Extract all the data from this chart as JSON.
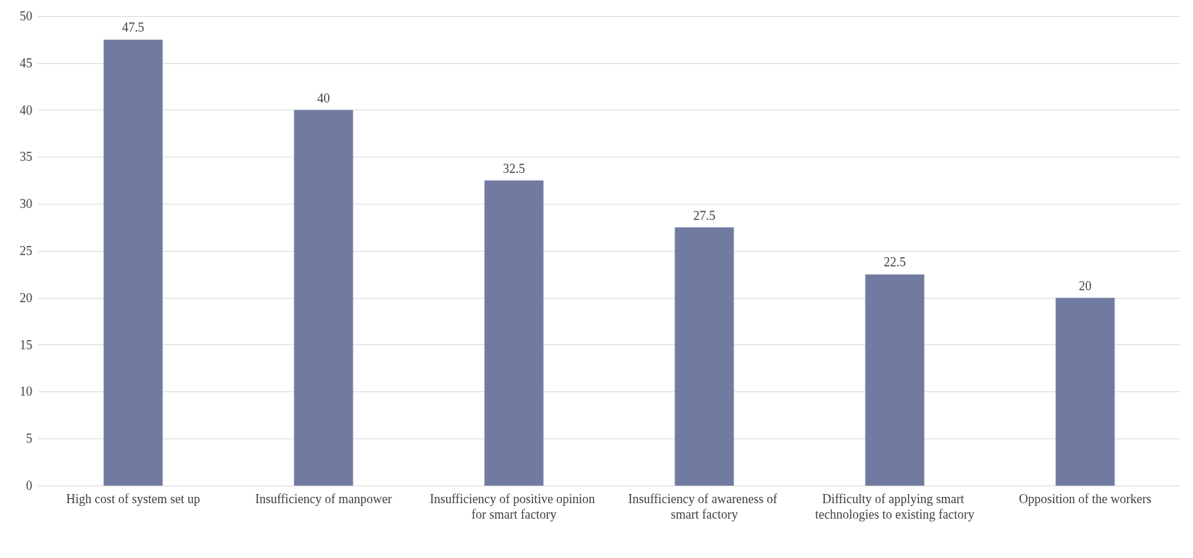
{
  "chart_data": {
    "type": "bar",
    "categories": [
      "High cost of system set up",
      "Insufficiency of manpower",
      "Insufficiency of positive opinion for smart factory",
      "Insufficiency of awareness of smart factory",
      "Difficulty of applying smart technologies to existing factory",
      "Opposition of the workers"
    ],
    "values": [
      47.5,
      40,
      32.5,
      27.5,
      22.5,
      20
    ],
    "color": "#717ba1",
    "ylim": [
      0,
      50
    ],
    "yticks": [
      0,
      5,
      10,
      15,
      20,
      25,
      30,
      35,
      40,
      45,
      50
    ],
    "grid": "y",
    "data_labels": true
  }
}
